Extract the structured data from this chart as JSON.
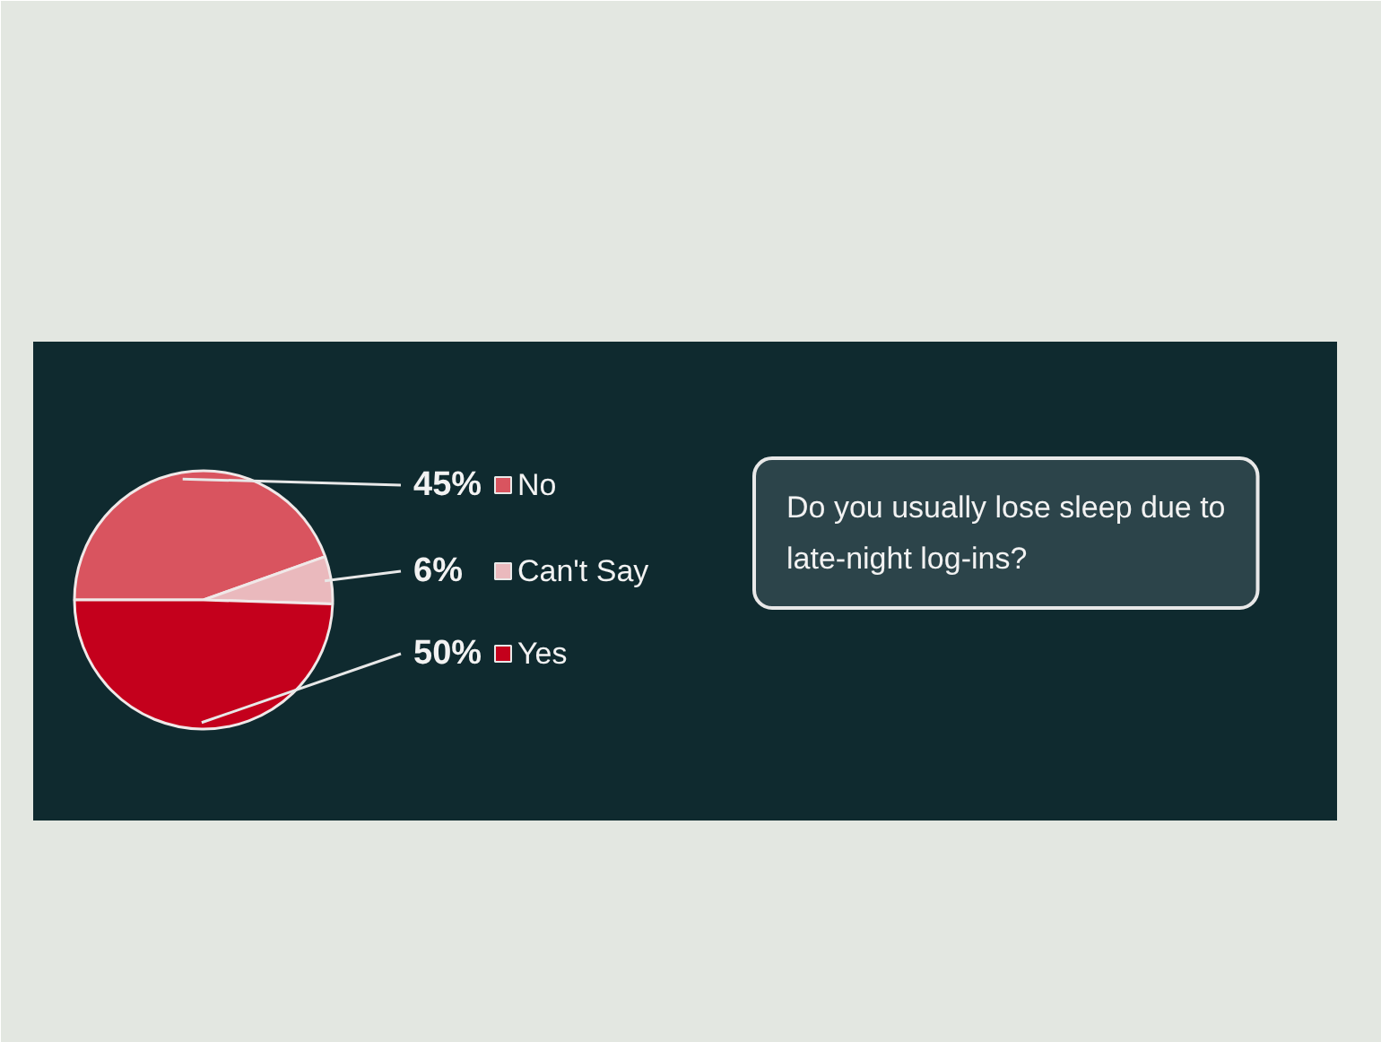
{
  "chart_data": {
    "type": "pie",
    "title": "Do you usually lose sleep due to late-night log-ins?",
    "categories": [
      "No",
      "Can't Say",
      "Yes"
    ],
    "values": [
      45,
      6,
      50
    ],
    "value_labels": [
      "45%",
      "6%",
      "50%"
    ],
    "colors": [
      "#d9545f",
      "#eab9bd",
      "#c4001c"
    ],
    "legend": "right"
  }
}
